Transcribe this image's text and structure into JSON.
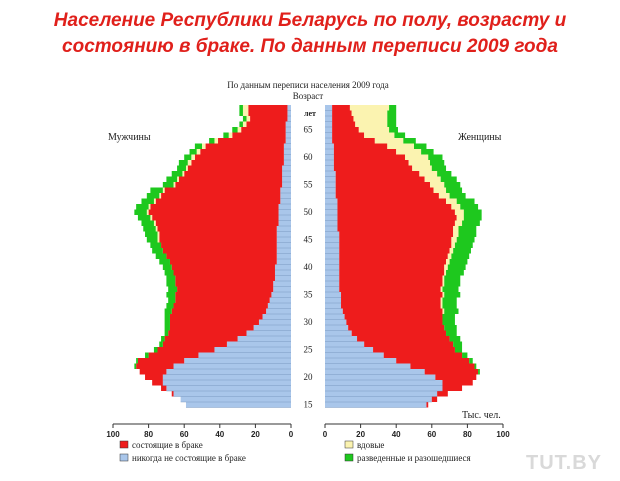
{
  "title_lines": [
    "Население Республики Беларусь по полу,  возрасту и",
    "состоянию в браке. По данным переписи 2009  года"
  ],
  "watermark": "TUT.BY",
  "colors": {
    "married": "#ee1c1c",
    "never_married": "#a9c6ea",
    "widowed": "#fbf3b0",
    "divorced": "#1ec81e",
    "title": "#e0201b"
  },
  "chart_data": {
    "type": "population-pyramid",
    "subtitle": "По данным переписи населения 2009 года",
    "age_axis_title": "Возраст",
    "age_unit_label": "лет",
    "unit_label": "Тыс. чел.",
    "left_label": "Мужчины",
    "right_label": "Женщины",
    "age_ticks": [
      15,
      20,
      25,
      30,
      35,
      40,
      45,
      50,
      55,
      60,
      65
    ],
    "value_ticks": [
      0,
      20,
      40,
      60,
      80,
      100
    ],
    "xlim": [
      0,
      100
    ],
    "legend": {
      "married": "состоящие в браке",
      "never_married": "никогда не состоящие в браке",
      "widowed": "вдовые",
      "divorced": "разведенные и разошедшиеся"
    },
    "ages": [
      15,
      16,
      17,
      18,
      19,
      20,
      21,
      22,
      23,
      24,
      25,
      26,
      27,
      28,
      29,
      30,
      31,
      32,
      33,
      34,
      35,
      36,
      37,
      38,
      39,
      40,
      41,
      42,
      43,
      44,
      45,
      46,
      47,
      48,
      49,
      50,
      51,
      52,
      53,
      54,
      55,
      56,
      57,
      58,
      59,
      60,
      61,
      62,
      63,
      64,
      65,
      66,
      67,
      68,
      69
    ],
    "male": {
      "never_married": [
        59,
        62,
        66,
        70,
        72,
        72,
        70,
        66,
        60,
        52,
        43,
        36,
        30,
        25,
        21,
        18,
        16,
        14,
        13,
        12,
        11,
        10,
        10,
        9,
        9,
        9,
        8,
        8,
        8,
        8,
        8,
        8,
        8,
        7,
        7,
        7,
        7,
        6,
        6,
        6,
        5,
        5,
        5,
        5,
        4,
        4,
        4,
        4,
        3,
        3,
        3,
        3,
        2,
        2,
        2
      ],
      "married": [
        0,
        0,
        1,
        3,
        6,
        10,
        15,
        21,
        26,
        28,
        32,
        36,
        41,
        44,
        47,
        50,
        52,
        53,
        53,
        53,
        54,
        54,
        55,
        56,
        57,
        58,
        60,
        62,
        64,
        65,
        66,
        66,
        67,
        69,
        71,
        73,
        72,
        70,
        67,
        65,
        60,
        58,
        55,
        53,
        52,
        50,
        47,
        44,
        38,
        30,
        25,
        22,
        21,
        22,
        22
      ],
      "widowed": [
        0,
        0,
        0,
        0,
        0,
        0,
        0,
        0,
        0,
        0,
        0,
        0,
        0,
        0,
        0,
        0,
        0,
        0,
        0,
        0,
        0,
        0,
        0,
        0,
        0,
        0,
        0,
        0,
        0,
        0,
        1,
        1,
        1,
        1,
        1,
        1,
        1,
        1,
        1,
        1,
        1,
        1,
        1,
        1,
        2,
        2,
        2,
        2,
        2,
        2,
        2,
        2,
        2,
        3,
        3
      ],
      "divorced": [
        0,
        0,
        0,
        0,
        0,
        0,
        0,
        1,
        1,
        2,
        2,
        2,
        2,
        2,
        3,
        3,
        3,
        4,
        4,
        4,
        5,
        5,
        5,
        5,
        5,
        5,
        6,
        6,
        6,
        6,
        6,
        7,
        7,
        7,
        7,
        7,
        7,
        7,
        7,
        7,
        6,
        6,
        6,
        5,
        5,
        4,
        4,
        4,
        3,
        3,
        3,
        2,
        2,
        2,
        2
      ]
    },
    "female": {
      "never_married": [
        57,
        60,
        63,
        66,
        66,
        62,
        56,
        48,
        40,
        33,
        27,
        22,
        18,
        15,
        13,
        12,
        11,
        10,
        9,
        9,
        9,
        8,
        8,
        8,
        8,
        8,
        8,
        8,
        8,
        8,
        8,
        8,
        7,
        7,
        7,
        7,
        7,
        7,
        6,
        6,
        6,
        6,
        6,
        5,
        5,
        5,
        5,
        5,
        4,
        4,
        4,
        4,
        4,
        4,
        4
      ],
      "married": [
        1,
        3,
        6,
        11,
        17,
        23,
        30,
        36,
        41,
        44,
        46,
        50,
        52,
        53,
        54,
        54,
        55,
        56,
        56,
        56,
        57,
        57,
        58,
        58,
        59,
        59,
        60,
        61,
        62,
        63,
        63,
        64,
        65,
        66,
        67,
        66,
        64,
        61,
        58,
        55,
        53,
        50,
        47,
        44,
        42,
        40,
        35,
        30,
        24,
        18,
        15,
        13,
        12,
        11,
        10
      ],
      "widowed": [
        0,
        0,
        0,
        0,
        0,
        0,
        0,
        0,
        0,
        0,
        0,
        0,
        0,
        0,
        0,
        0,
        0,
        1,
        1,
        1,
        1,
        1,
        1,
        1,
        1,
        2,
        2,
        2,
        2,
        2,
        3,
        3,
        3,
        4,
        4,
        5,
        5,
        6,
        6,
        7,
        8,
        9,
        10,
        11,
        12,
        13,
        14,
        15,
        16,
        17,
        17,
        18,
        19,
        20,
        22
      ],
      "divorced": [
        0,
        0,
        0,
        0,
        0,
        0,
        1,
        1,
        2,
        3,
        4,
        5,
        6,
        6,
        7,
        7,
        7,
        8,
        8,
        8,
        9,
        9,
        9,
        9,
        10,
        10,
        10,
        10,
        10,
        10,
        10,
        10,
        10,
        10,
        10,
        10,
        10,
        10,
        9,
        9,
        9,
        9,
        8,
        8,
        8,
        8,
        7,
        7,
        7,
        6,
        5,
        5,
        5,
        5,
        4
      ]
    }
  }
}
